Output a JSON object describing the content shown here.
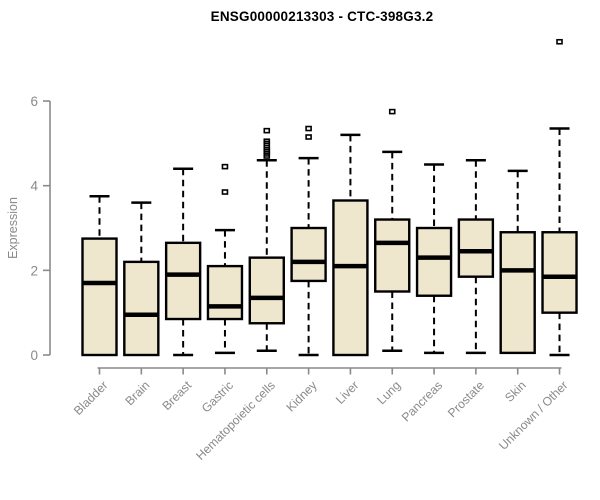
{
  "chart_data": {
    "type": "boxplot",
    "title": "ENSG00000213303 - CTC-398G3.2",
    "ylabel": "Expression",
    "xlabel": "",
    "yticks": [
      0,
      2,
      4,
      6
    ],
    "ylim": [
      0,
      7.6
    ],
    "grid": false,
    "legend": "none",
    "categories": [
      "Bladder",
      "Brain",
      "Breast",
      "Gastric",
      "Hematopoietic cells",
      "Kidney",
      "Liver",
      "Lung",
      "Pancreas",
      "Prostate",
      "Skin",
      "Unknown / Other"
    ],
    "series": [
      {
        "name": "Bladder",
        "min": 0,
        "q1": 0,
        "median": 1.7,
        "q3": 2.75,
        "max": 3.75,
        "outliers": []
      },
      {
        "name": "Brain",
        "min": 0,
        "q1": 0,
        "median": 0.95,
        "q3": 2.2,
        "max": 3.6,
        "outliers": []
      },
      {
        "name": "Breast",
        "min": 0,
        "q1": 0.85,
        "median": 1.9,
        "q3": 2.65,
        "max": 4.4,
        "outliers": []
      },
      {
        "name": "Gastric",
        "min": 0.05,
        "q1": 0.85,
        "median": 1.15,
        "q3": 2.1,
        "max": 2.95,
        "outliers": [
          3.85,
          4.45
        ]
      },
      {
        "name": "Hematopoietic cells",
        "min": 0.1,
        "q1": 0.75,
        "median": 1.35,
        "q3": 2.3,
        "max": 4.6,
        "outliers": [
          4.7,
          4.75,
          4.8,
          4.85,
          4.9,
          5.0,
          5.05,
          5.3
        ]
      },
      {
        "name": "Kidney",
        "min": 0,
        "q1": 1.75,
        "median": 2.2,
        "q3": 3.0,
        "max": 4.65,
        "outliers": [
          5.15,
          5.35
        ]
      },
      {
        "name": "Liver",
        "min": 0,
        "q1": 0,
        "median": 2.1,
        "q3": 3.65,
        "max": 5.2,
        "outliers": []
      },
      {
        "name": "Lung",
        "min": 0.1,
        "q1": 1.5,
        "median": 2.65,
        "q3": 3.2,
        "max": 4.8,
        "outliers": [
          5.75
        ]
      },
      {
        "name": "Pancreas",
        "min": 0.05,
        "q1": 1.4,
        "median": 2.3,
        "q3": 3.0,
        "max": 4.5,
        "outliers": []
      },
      {
        "name": "Prostate",
        "min": 0.05,
        "q1": 1.85,
        "median": 2.45,
        "q3": 3.2,
        "max": 4.6,
        "outliers": []
      },
      {
        "name": "Skin",
        "min": 0.05,
        "q1": 0.05,
        "median": 2.0,
        "q3": 2.9,
        "max": 4.35,
        "outliers": []
      },
      {
        "name": "Unknown / Other",
        "min": 0,
        "q1": 1.0,
        "median": 1.85,
        "q3": 2.9,
        "max": 5.35,
        "outliers": [
          7.4
        ]
      }
    ],
    "colors": {
      "box_fill": "#EFE7CD",
      "box_stroke": "#000000",
      "axis": "#8A8A8A",
      "tick_label": "#8A8A8A",
      "title": "#000000"
    }
  }
}
